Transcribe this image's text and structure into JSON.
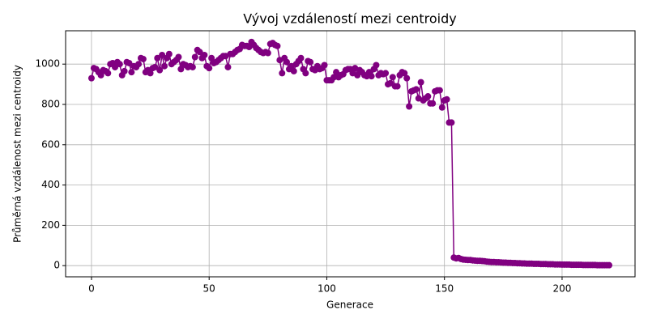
{
  "chart_data": {
    "type": "line",
    "title": "Vývoj vzdáleností mezi centroidy",
    "xlabel": "Generace",
    "ylabel": "Průměrná vzdálenost mezi centroidy",
    "x": [
      0,
      1,
      2,
      3,
      4,
      5,
      6,
      7,
      8,
      9,
      10,
      11,
      12,
      13,
      14,
      15,
      16,
      17,
      18,
      19,
      20,
      21,
      22,
      23,
      24,
      25,
      26,
      27,
      28,
      29,
      30,
      31,
      32,
      33,
      34,
      35,
      36,
      37,
      38,
      39,
      40,
      41,
      42,
      43,
      44,
      45,
      46,
      47,
      48,
      49,
      50,
      51,
      52,
      53,
      54,
      55,
      56,
      57,
      58,
      59,
      60,
      61,
      62,
      63,
      64,
      65,
      66,
      67,
      68,
      69,
      70,
      71,
      72,
      73,
      74,
      75,
      76,
      77,
      78,
      79,
      80,
      81,
      82,
      83,
      84,
      85,
      86,
      87,
      88,
      89,
      90,
      91,
      92,
      93,
      94,
      95,
      96,
      97,
      98,
      99,
      100,
      101,
      102,
      103,
      104,
      105,
      106,
      107,
      108,
      109,
      110,
      111,
      112,
      113,
      114,
      115,
      116,
      117,
      118,
      119,
      120,
      121,
      122,
      123,
      124,
      125,
      126,
      127,
      128,
      129,
      130,
      131,
      132,
      133,
      134,
      135,
      136,
      137,
      138,
      139,
      140,
      141,
      142,
      143,
      144,
      145,
      146,
      147,
      148,
      149,
      150,
      151,
      152,
      153,
      154,
      155,
      156,
      157,
      158,
      159,
      160,
      161,
      162,
      163,
      164,
      165,
      166,
      167,
      168,
      169,
      170,
      171,
      172,
      173,
      174,
      175,
      176,
      177,
      178,
      179,
      180,
      181,
      182,
      183,
      184,
      185,
      186,
      187,
      188,
      189,
      190,
      191,
      192,
      193,
      194,
      195,
      196,
      197,
      198,
      199,
      200,
      201,
      202,
      203,
      204,
      205,
      206,
      207,
      208,
      209,
      210,
      211,
      212,
      213,
      214,
      215,
      216,
      217,
      218,
      219,
      220
    ],
    "series": [
      {
        "color": "#800080",
        "values": [
          930,
          980,
          975,
          960,
          945,
          970,
          965,
          955,
          1000,
          1005,
          985,
          1010,
          1000,
          945,
          965,
          1010,
          1005,
          960,
          990,
          985,
          1000,
          1030,
          1025,
          960,
          970,
          955,
          980,
          985,
          1030,
          970,
          1045,
          990,
          1030,
          1050,
          1000,
          1010,
          1020,
          1035,
          975,
          1000,
          995,
          985,
          990,
          985,
          1035,
          1070,
          1060,
          1030,
          1045,
          990,
          980,
          1030,
          1005,
          1010,
          1020,
          1030,
          1040,
          1040,
          985,
          1050,
          1050,
          1060,
          1070,
          1075,
          1095,
          1090,
          1090,
          1085,
          1110,
          1095,
          1080,
          1070,
          1060,
          1055,
          1060,
          1055,
          1100,
          1105,
          1095,
          1090,
          1020,
          955,
          1030,
          1010,
          975,
          990,
          965,
          1000,
          1015,
          1030,
          975,
          955,
          1015,
          1010,
          975,
          970,
          990,
          975,
          980,
          995,
          920,
          920,
          920,
          935,
          960,
          935,
          945,
          950,
          970,
          975,
          975,
          955,
          980,
          945,
          970,
          960,
          945,
          940,
          960,
          940,
          975,
          995,
          945,
          955,
          950,
          955,
          900,
          905,
          935,
          890,
          890,
          945,
          960,
          955,
          930,
          790,
          865,
          870,
          875,
          830,
          910,
          820,
          830,
          840,
          805,
          805,
          865,
          870,
          870,
          785,
          820,
          825,
          710,
          710,
          40,
          36,
          38,
          33,
          30,
          29,
          28,
          28,
          26,
          25,
          24,
          24,
          23,
          22,
          20,
          19,
          18,
          18,
          17,
          17,
          16,
          15,
          15,
          14,
          14,
          13,
          13,
          12,
          12,
          11,
          11,
          10,
          10,
          10,
          9,
          9,
          9,
          8,
          8,
          8,
          7,
          7,
          7,
          6,
          6,
          6,
          5,
          5,
          5,
          5,
          4,
          4,
          4,
          4,
          4,
          3,
          3,
          3,
          3,
          3,
          3,
          2,
          2,
          2,
          2,
          2,
          2
        ]
      }
    ],
    "xlim": [
      -11,
      231
    ],
    "ylim": [
      -55.5,
      1165.5
    ],
    "xticks": [
      0,
      50,
      100,
      150,
      200
    ],
    "yticks": [
      0,
      200,
      400,
      600,
      800,
      1000
    ],
    "grid": true
  }
}
